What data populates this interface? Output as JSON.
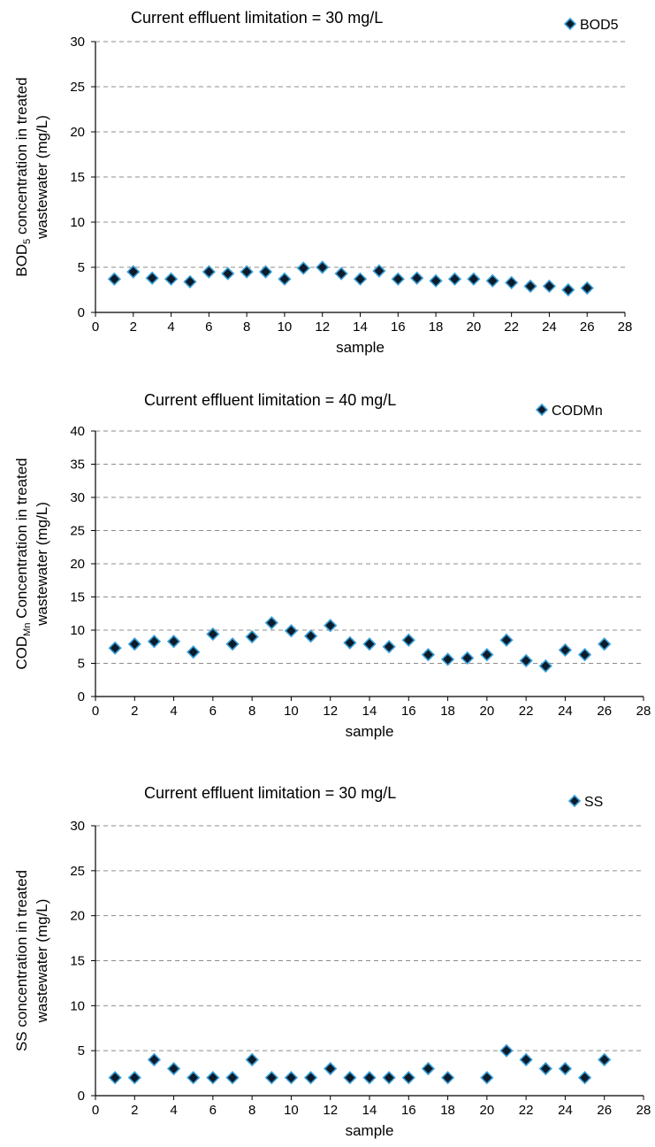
{
  "chart_data": [
    {
      "type": "scatter",
      "title": "Current effluent limitation = 30 mg/L",
      "ylabel": {
        "pre": "BOD",
        "sub": "5",
        "post": " concentration in treated",
        "line2": "wastewater (mg/L)"
      },
      "xlabel": "sample",
      "xlim": [
        0,
        28
      ],
      "ylim": [
        0,
        30
      ],
      "xticks": [
        0,
        2,
        4,
        6,
        8,
        10,
        12,
        14,
        16,
        18,
        20,
        22,
        24,
        26,
        28
      ],
      "yticks": [
        0,
        5,
        10,
        15,
        20,
        25,
        30
      ],
      "grid": true,
      "legend_position": "top-right",
      "series": [
        {
          "name": "BOD5",
          "x": [
            1,
            2,
            3,
            4,
            5,
            6,
            7,
            8,
            9,
            10,
            11,
            12,
            13,
            14,
            15,
            16,
            17,
            18,
            19,
            20,
            21,
            22,
            23,
            24,
            25,
            26
          ],
          "y": [
            3.7,
            4.5,
            3.8,
            3.7,
            3.4,
            4.5,
            4.3,
            4.5,
            4.5,
            3.7,
            4.9,
            5.0,
            4.3,
            3.7,
            4.6,
            3.7,
            3.8,
            3.5,
            3.7,
            3.7,
            3.5,
            3.3,
            2.9,
            2.9,
            2.5,
            2.7
          ]
        }
      ]
    },
    {
      "type": "scatter",
      "title": "Current effluent limitation = 40 mg/L",
      "ylabel": {
        "pre": "COD",
        "sub": "Mn",
        "post": " Concentration in treated",
        "line2": "wastewater (mg/L)"
      },
      "xlabel": "sample",
      "xlim": [
        0,
        28
      ],
      "ylim": [
        0,
        40
      ],
      "xticks": [
        0,
        2,
        4,
        6,
        8,
        10,
        12,
        14,
        16,
        18,
        20,
        22,
        24,
        26,
        28
      ],
      "yticks": [
        0,
        5,
        10,
        15,
        20,
        25,
        30,
        35,
        40
      ],
      "grid": true,
      "legend_position": "top-right",
      "series": [
        {
          "name": "CODMn",
          "x": [
            1,
            2,
            3,
            4,
            5,
            6,
            7,
            8,
            9,
            10,
            11,
            12,
            13,
            14,
            15,
            16,
            17,
            18,
            19,
            20,
            21,
            22,
            23,
            24,
            25,
            26
          ],
          "y": [
            7.3,
            7.9,
            8.3,
            8.3,
            6.7,
            9.4,
            7.9,
            9.0,
            11.1,
            9.9,
            9.1,
            10.7,
            8.1,
            7.9,
            7.5,
            8.5,
            6.3,
            5.6,
            5.8,
            6.3,
            8.5,
            5.4,
            4.6,
            7.0,
            6.3,
            7.9
          ]
        }
      ]
    },
    {
      "type": "scatter",
      "title": "Current effluent limitation = 30 mg/L",
      "ylabel": {
        "pre": "SS concentration in treated",
        "sub": "",
        "post": "",
        "line2": "wastewater (mg/L)"
      },
      "xlabel": "sample",
      "xlim": [
        0,
        28
      ],
      "ylim": [
        0,
        30
      ],
      "xticks": [
        0,
        2,
        4,
        6,
        8,
        10,
        12,
        14,
        16,
        18,
        20,
        22,
        24,
        26,
        28
      ],
      "yticks": [
        0,
        5,
        10,
        15,
        20,
        25,
        30
      ],
      "grid": true,
      "legend_position": "top-right",
      "series": [
        {
          "name": "SS",
          "x": [
            1,
            2,
            3,
            4,
            5,
            6,
            7,
            8,
            9,
            10,
            11,
            12,
            13,
            14,
            15,
            16,
            17,
            18,
            20,
            21,
            22,
            23,
            24,
            25,
            26
          ],
          "y": [
            2,
            2,
            4,
            3,
            2,
            2,
            2,
            4,
            2,
            2,
            2,
            3,
            2,
            2,
            2,
            2,
            3,
            2,
            2,
            5,
            4,
            3,
            3,
            2,
            4
          ]
        }
      ]
    }
  ],
  "colors": {
    "marker_fill": "#0d1b2a",
    "marker_edge": "#3aa0d8",
    "grid": "#8c8c8c"
  }
}
